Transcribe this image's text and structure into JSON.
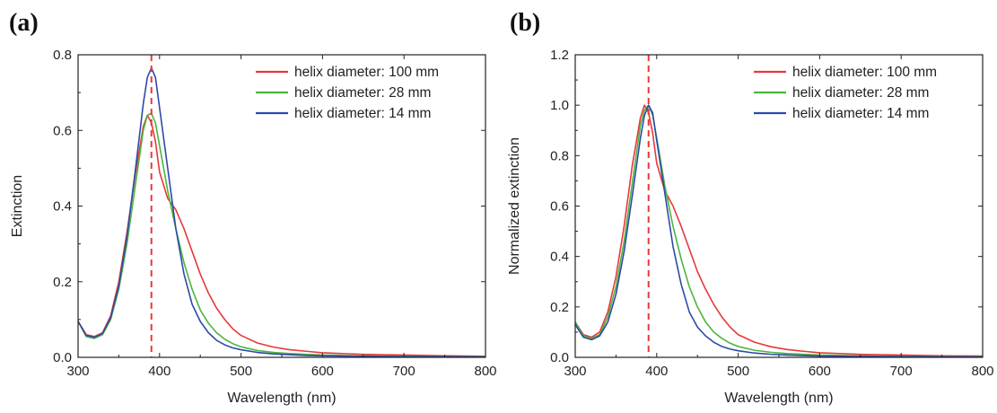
{
  "chart_data": [
    {
      "panel_label": "(a)",
      "type": "line",
      "xlabel": "Wavelength (nm)",
      "ylabel": "Extinction",
      "xlim": [
        300,
        800
      ],
      "ylim": [
        0,
        0.8
      ],
      "xticks": [
        300,
        400,
        500,
        600,
        700,
        800
      ],
      "yticks": [
        0.0,
        0.2,
        0.4,
        0.6,
        0.8
      ],
      "ytick_labels": [
        "0.0",
        "0.2",
        "0.4",
        "0.6",
        "0.8"
      ],
      "grid": false,
      "legend_position": "top-right",
      "reference_line": {
        "x": 390,
        "color": "#e8383a",
        "style": "dashed"
      },
      "series": [
        {
          "name": "helix diameter: 100 mm",
          "color": "#e8383a",
          "x": [
            300,
            310,
            320,
            330,
            340,
            350,
            360,
            370,
            380,
            385,
            390,
            395,
            400,
            410,
            420,
            430,
            440,
            450,
            460,
            470,
            480,
            490,
            500,
            520,
            540,
            560,
            580,
            600,
            650,
            700,
            750,
            800
          ],
          "y": [
            0.095,
            0.06,
            0.055,
            0.065,
            0.11,
            0.2,
            0.33,
            0.48,
            0.61,
            0.64,
            0.62,
            0.57,
            0.49,
            0.42,
            0.39,
            0.34,
            0.28,
            0.22,
            0.17,
            0.13,
            0.1,
            0.075,
            0.058,
            0.038,
            0.027,
            0.02,
            0.016,
            0.012,
            0.008,
            0.006,
            0.004,
            0.003
          ]
        },
        {
          "name": "helix diameter: 28 mm",
          "color": "#4cb53f",
          "x": [
            300,
            310,
            320,
            330,
            340,
            350,
            360,
            370,
            380,
            385,
            390,
            395,
            400,
            410,
            420,
            430,
            440,
            450,
            460,
            470,
            480,
            490,
            500,
            520,
            540,
            560,
            580,
            600,
            650,
            700,
            750,
            800
          ],
          "y": [
            0.095,
            0.055,
            0.05,
            0.06,
            0.1,
            0.18,
            0.3,
            0.45,
            0.6,
            0.64,
            0.645,
            0.62,
            0.56,
            0.44,
            0.34,
            0.25,
            0.18,
            0.125,
            0.09,
            0.065,
            0.048,
            0.036,
            0.028,
            0.018,
            0.013,
            0.01,
            0.008,
            0.006,
            0.004,
            0.003,
            0.002,
            0.002
          ]
        },
        {
          "name": "helix diameter: 14 mm",
          "color": "#2d4aa8",
          "x": [
            300,
            310,
            320,
            330,
            340,
            350,
            360,
            370,
            380,
            385,
            390,
            395,
            400,
            410,
            420,
            430,
            440,
            450,
            460,
            470,
            480,
            490,
            500,
            520,
            540,
            560,
            580,
            600,
            650,
            700,
            750,
            800
          ],
          "y": [
            0.095,
            0.058,
            0.053,
            0.063,
            0.105,
            0.19,
            0.32,
            0.49,
            0.67,
            0.74,
            0.765,
            0.74,
            0.66,
            0.5,
            0.34,
            0.22,
            0.14,
            0.095,
            0.065,
            0.045,
            0.033,
            0.025,
            0.02,
            0.013,
            0.009,
            0.007,
            0.005,
            0.004,
            0.003,
            0.002,
            0.002,
            0.001
          ]
        }
      ]
    },
    {
      "panel_label": "(b)",
      "type": "line",
      "xlabel": "Wavelength (nm)",
      "ylabel": "Normalized extinction",
      "xlim": [
        300,
        800
      ],
      "ylim": [
        0,
        1.2
      ],
      "xticks": [
        300,
        400,
        500,
        600,
        700,
        800
      ],
      "yticks": [
        0.0,
        0.2,
        0.4,
        0.6,
        0.8,
        1.0,
        1.2
      ],
      "ytick_labels": [
        "0.0",
        "0.2",
        "0.4",
        "0.6",
        "0.8",
        "1.0",
        "1.2"
      ],
      "grid": false,
      "legend_position": "top-right",
      "reference_line": {
        "x": 390,
        "color": "#e8383a",
        "style": "dashed"
      },
      "series": [
        {
          "name": "helix diameter: 100 mm",
          "color": "#e8383a",
          "x": [
            300,
            310,
            320,
            330,
            340,
            350,
            360,
            370,
            380,
            385,
            390,
            395,
            400,
            410,
            420,
            430,
            440,
            450,
            460,
            470,
            480,
            490,
            500,
            520,
            540,
            560,
            580,
            600,
            650,
            700,
            750,
            800
          ],
          "y": [
            0.14,
            0.09,
            0.08,
            0.1,
            0.18,
            0.32,
            0.52,
            0.76,
            0.95,
            1.0,
            0.97,
            0.89,
            0.77,
            0.66,
            0.6,
            0.52,
            0.43,
            0.34,
            0.27,
            0.21,
            0.16,
            0.12,
            0.09,
            0.06,
            0.042,
            0.031,
            0.024,
            0.018,
            0.012,
            0.009,
            0.006,
            0.005
          ]
        },
        {
          "name": "helix diameter: 28 mm",
          "color": "#4cb53f",
          "x": [
            300,
            310,
            320,
            330,
            340,
            350,
            360,
            370,
            380,
            385,
            390,
            395,
            400,
            410,
            420,
            430,
            440,
            450,
            460,
            470,
            480,
            490,
            500,
            520,
            540,
            560,
            580,
            600,
            650,
            700,
            750,
            800
          ],
          "y": [
            0.14,
            0.085,
            0.075,
            0.09,
            0.16,
            0.28,
            0.46,
            0.69,
            0.92,
            0.98,
            1.0,
            0.96,
            0.87,
            0.68,
            0.52,
            0.39,
            0.28,
            0.2,
            0.14,
            0.1,
            0.075,
            0.056,
            0.043,
            0.028,
            0.02,
            0.015,
            0.012,
            0.009,
            0.006,
            0.004,
            0.003,
            0.003
          ]
        },
        {
          "name": "helix diameter: 14 mm",
          "color": "#2d4aa8",
          "x": [
            300,
            310,
            320,
            330,
            340,
            350,
            360,
            370,
            380,
            385,
            390,
            395,
            400,
            410,
            420,
            430,
            440,
            450,
            460,
            470,
            480,
            490,
            500,
            520,
            540,
            560,
            580,
            600,
            650,
            700,
            750,
            800
          ],
          "y": [
            0.13,
            0.08,
            0.07,
            0.085,
            0.14,
            0.25,
            0.42,
            0.64,
            0.87,
            0.96,
            1.0,
            0.97,
            0.86,
            0.65,
            0.44,
            0.29,
            0.18,
            0.12,
            0.085,
            0.06,
            0.043,
            0.033,
            0.026,
            0.017,
            0.012,
            0.009,
            0.007,
            0.005,
            0.004,
            0.003,
            0.002,
            0.002
          ]
        }
      ]
    }
  ]
}
